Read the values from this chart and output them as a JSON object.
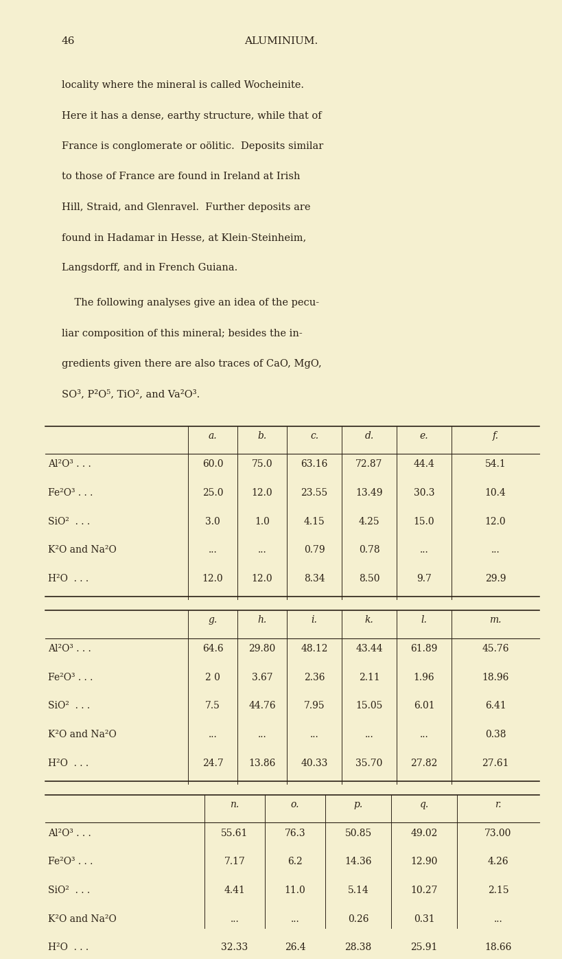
{
  "page_number": "46",
  "heading": "ALUMINIUM.",
  "background_color": "#f5f0d0",
  "text_color": "#2a2015",
  "paragraph1": "locality where the mineral is called Wocheinite.\nHere it has a dense, earthy structure, while that of\nFrance is conglomerate or oölitic.  Deposits similar\nto those of France are found in Ireland at Irish\nHill, Straid, and Glenravel.  Further deposits are\nfound in Hadamar in Hesse, at Klein-Steinheim,\nLangsdorff, and in French Guiana.",
  "paragraph2": "    The following analyses give an idea of the pecu-\nliar composition of this mineral; besides the in-\ngredients given there are also traces of CaO, MgO,\nSO³, P²O⁵, TiO², and Va²O³.",
  "table1": {
    "col_headers": [
      "a.",
      "b.",
      "c.",
      "d.",
      "e.",
      "f."
    ],
    "rows": [
      [
        "Al²O³ . . .",
        "60.0",
        "75.0",
        "63.16",
        "72.87",
        "44.4",
        "54.1"
      ],
      [
        "Fe²O³ . . .",
        "25.0",
        "12.0",
        "23.55",
        "13.49",
        "30.3",
        "10.4"
      ],
      [
        "SiO²  . . .",
        "3.0",
        "1.0",
        "4.15",
        "4.25",
        "15.0",
        "12.0"
      ],
      [
        "K²O and Na²O",
        "...",
        "...",
        "0.79",
        "0.78",
        "...",
        "..."
      ],
      [
        "H²O  . . .",
        "12.0",
        "12.0",
        "8.34",
        "8.50",
        "9.7",
        "29.9"
      ]
    ]
  },
  "table2": {
    "col_headers": [
      "g.",
      "h.",
      "i.",
      "k.",
      "l.",
      "m."
    ],
    "rows": [
      [
        "Al²O³ . . .",
        "64.6",
        "29.80",
        "48.12",
        "43.44",
        "61.89",
        "45.76"
      ],
      [
        "Fe²O³ . . .",
        "2 0",
        "3.67",
        "2.36",
        "2.11",
        "1.96",
        "18.96"
      ],
      [
        "SiO²  . . .",
        "7.5",
        "44.76",
        "7.95",
        "15.05",
        "6.01",
        "6.41"
      ],
      [
        "K²O and Na²O",
        "...",
        "...",
        "...",
        "...",
        "...",
        "0.38"
      ],
      [
        "H²O  . . .",
        "24.7",
        "13.86",
        "40.33",
        "35.70",
        "27.82",
        "27.61"
      ]
    ]
  },
  "table3": {
    "col_headers": [
      "n.",
      "o.",
      "p.",
      "q.",
      "r."
    ],
    "rows": [
      [
        "Al²O³ . . .",
        "55.61",
        "76.3",
        "50.85",
        "49.02",
        "73.00"
      ],
      [
        "Fe²O³ . . .",
        "7.17",
        "6.2",
        "14.36",
        "12.90",
        "4.26"
      ],
      [
        "SiO²  . . .",
        "4.41",
        "11.0",
        "5.14",
        "10.27",
        "2.15"
      ],
      [
        "K²O and Na²O",
        "...",
        "...",
        "0.26",
        "0.31",
        "..."
      ],
      [
        "H²O  . . .",
        "32.33",
        "26.4",
        "28.38",
        "25.91",
        "18.66"
      ]
    ]
  }
}
